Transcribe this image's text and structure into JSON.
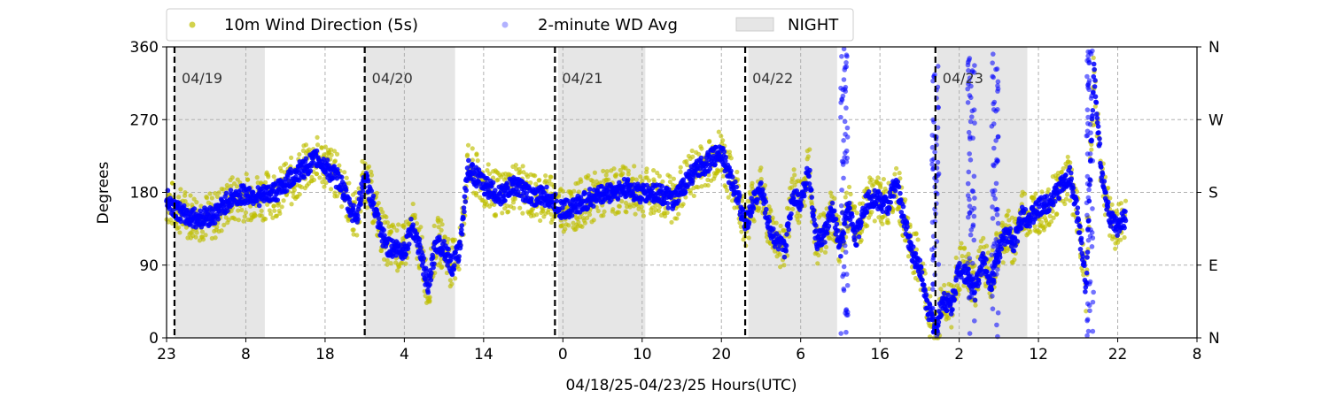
{
  "chart_data": {
    "type": "scatter",
    "xlabel": "04/18/25-04/23/25  Hours(UTC)",
    "ylabel": "Degrees",
    "ylim": [
      0,
      360
    ],
    "x_tick_labels": [
      "23",
      "8",
      "18",
      "4",
      "14",
      "0",
      "10",
      "20",
      "6",
      "16",
      "2",
      "12",
      "22",
      "8"
    ],
    "y_ticks": [
      0,
      90,
      180,
      270,
      360
    ],
    "right_axis_labels": [
      "N",
      "E",
      "S",
      "W",
      "N"
    ],
    "grid": true,
    "legend_position": "top",
    "legend": {
      "wind": "10m Wind Direction (5s)",
      "avg": "2-minute WD Avg",
      "night": "NIGHT"
    },
    "day_labels": [
      "04/19",
      "04/20",
      "04/21",
      "04/22",
      "04/23"
    ],
    "day_boundaries_hours": [
      1,
      25,
      49,
      73,
      97
    ],
    "night_periods_hours": [
      [
        1,
        12.4
      ],
      [
        25,
        36.4
      ],
      [
        49.4,
        60.4
      ],
      [
        73.4,
        84.6
      ],
      [
        97.2,
        108.6
      ]
    ],
    "series": [
      {
        "name": "10m Wind Direction (5s)",
        "color": "#bfbf00",
        "points": [
          [
            0,
            170
          ],
          [
            2,
            155
          ],
          [
            4,
            150
          ],
          [
            6,
            150
          ],
          [
            8,
            170
          ],
          [
            10,
            175
          ],
          [
            12,
            175
          ],
          [
            14,
            180
          ],
          [
            16,
            195
          ],
          [
            18,
            215
          ],
          [
            19,
            220
          ],
          [
            20,
            215
          ],
          [
            22,
            195
          ],
          [
            23,
            165
          ],
          [
            24,
            150
          ],
          [
            25,
            200
          ],
          [
            26,
            170
          ],
          [
            27,
            135
          ],
          [
            28,
            115
          ],
          [
            30,
            110
          ],
          [
            31,
            140
          ],
          [
            32,
            110
          ],
          [
            33,
            60
          ],
          [
            34,
            120
          ],
          [
            35,
            115
          ],
          [
            36,
            90
          ],
          [
            37,
            110
          ],
          [
            38,
            210
          ],
          [
            40,
            190
          ],
          [
            42,
            175
          ],
          [
            44,
            190
          ],
          [
            46,
            175
          ],
          [
            48,
            175
          ],
          [
            50,
            160
          ],
          [
            52,
            165
          ],
          [
            54,
            175
          ],
          [
            56,
            180
          ],
          [
            58,
            185
          ],
          [
            60,
            180
          ],
          [
            62,
            180
          ],
          [
            64,
            170
          ],
          [
            66,
            200
          ],
          [
            68,
            215
          ],
          [
            70,
            230
          ],
          [
            71,
            200
          ],
          [
            72,
            180
          ],
          [
            73,
            140
          ],
          [
            74,
            170
          ],
          [
            75,
            185
          ],
          [
            76,
            140
          ],
          [
            77,
            120
          ],
          [
            78,
            110
          ],
          [
            79,
            180
          ],
          [
            80,
            170
          ],
          [
            81,
            210
          ],
          [
            82,
            120
          ],
          [
            83,
            130
          ],
          [
            84,
            160
          ],
          [
            85,
            110
          ],
          [
            86,
            165
          ],
          [
            87,
            125
          ],
          [
            88,
            165
          ],
          [
            89,
            175
          ],
          [
            90,
            170
          ],
          [
            91,
            165
          ],
          [
            92,
            195
          ],
          [
            93,
            150
          ],
          [
            94,
            110
          ],
          [
            95,
            90
          ],
          [
            96,
            40
          ],
          [
            97,
            10
          ],
          [
            98,
            50
          ],
          [
            99,
            40
          ],
          [
            100,
            90
          ],
          [
            101,
            80
          ],
          [
            102,
            60
          ],
          [
            103,
            100
          ],
          [
            104,
            70
          ],
          [
            105,
            110
          ],
          [
            106,
            130
          ],
          [
            107,
            120
          ],
          [
            108,
            155
          ],
          [
            109,
            150
          ],
          [
            110,
            160
          ],
          [
            111,
            165
          ],
          [
            112,
            175
          ],
          [
            113,
            190
          ],
          [
            114,
            200
          ],
          [
            115,
            150
          ],
          [
            116,
            60
          ],
          [
            117,
            330
          ],
          [
            118,
            200
          ],
          [
            119,
            150
          ],
          [
            120,
            135
          ],
          [
            121,
            150
          ]
        ]
      },
      {
        "name": "2-minute WD Avg",
        "color": "#0000ff",
        "points": [
          [
            0,
            172
          ],
          [
            2,
            152
          ],
          [
            4,
            148
          ],
          [
            6,
            152
          ],
          [
            8,
            172
          ],
          [
            10,
            178
          ],
          [
            12,
            175
          ],
          [
            14,
            182
          ],
          [
            16,
            200
          ],
          [
            18,
            215
          ],
          [
            19,
            222
          ],
          [
            20,
            212
          ],
          [
            22,
            192
          ],
          [
            23,
            162
          ],
          [
            24,
            150
          ],
          [
            25,
            200
          ],
          [
            26,
            168
          ],
          [
            27,
            130
          ],
          [
            28,
            112
          ],
          [
            30,
            108
          ],
          [
            31,
            140
          ],
          [
            32,
            108
          ],
          [
            33,
            60
          ],
          [
            34,
            118
          ],
          [
            35,
            112
          ],
          [
            36,
            88
          ],
          [
            37,
            110
          ],
          [
            38,
            210
          ],
          [
            40,
            190
          ],
          [
            42,
            175
          ],
          [
            44,
            190
          ],
          [
            46,
            175
          ],
          [
            48,
            175
          ],
          [
            50,
            158
          ],
          [
            52,
            165
          ],
          [
            54,
            175
          ],
          [
            56,
            180
          ],
          [
            58,
            185
          ],
          [
            60,
            178
          ],
          [
            62,
            180
          ],
          [
            64,
            168
          ],
          [
            66,
            200
          ],
          [
            68,
            215
          ],
          [
            70,
            232
          ],
          [
            71,
            200
          ],
          [
            72,
            178
          ],
          [
            73,
            138
          ],
          [
            74,
            168
          ],
          [
            75,
            185
          ],
          [
            76,
            138
          ],
          [
            77,
            118
          ],
          [
            78,
            108
          ],
          [
            79,
            178
          ],
          [
            80,
            168
          ],
          [
            81,
            210
          ],
          [
            82,
            118
          ],
          [
            83,
            128
          ],
          [
            84,
            158
          ],
          [
            85,
            108
          ],
          [
            86,
            163
          ],
          [
            87,
            123
          ],
          [
            88,
            163
          ],
          [
            89,
            175
          ],
          [
            90,
            168
          ],
          [
            91,
            163
          ],
          [
            92,
            195
          ],
          [
            93,
            148
          ],
          [
            94,
            108
          ],
          [
            95,
            88
          ],
          [
            96,
            38
          ],
          [
            97,
            10
          ],
          [
            98,
            48
          ],
          [
            99,
            38
          ],
          [
            100,
            88
          ],
          [
            101,
            78
          ],
          [
            102,
            58
          ],
          [
            103,
            98
          ],
          [
            104,
            68
          ],
          [
            105,
            108
          ],
          [
            106,
            128
          ],
          [
            107,
            118
          ],
          [
            108,
            153
          ],
          [
            109,
            148
          ],
          [
            110,
            160
          ],
          [
            111,
            165
          ],
          [
            112,
            175
          ],
          [
            113,
            190
          ],
          [
            114,
            200
          ],
          [
            115,
            148
          ],
          [
            116,
            60
          ],
          [
            117,
            330
          ],
          [
            118,
            200
          ],
          [
            119,
            148
          ],
          [
            120,
            133
          ],
          [
            121,
            150
          ]
        ]
      }
    ],
    "scatter_bursts_hours": [
      {
        "x": 85.5,
        "color": "#0000ff"
      },
      {
        "x": 97,
        "color": "#0000ff"
      },
      {
        "x": 101.5,
        "color": "#0000ff"
      },
      {
        "x": 104.5,
        "color": "#0000ff"
      },
      {
        "x": 116.5,
        "color": "#0000ff"
      }
    ],
    "x_domain_hours": [
      0,
      130
    ]
  }
}
